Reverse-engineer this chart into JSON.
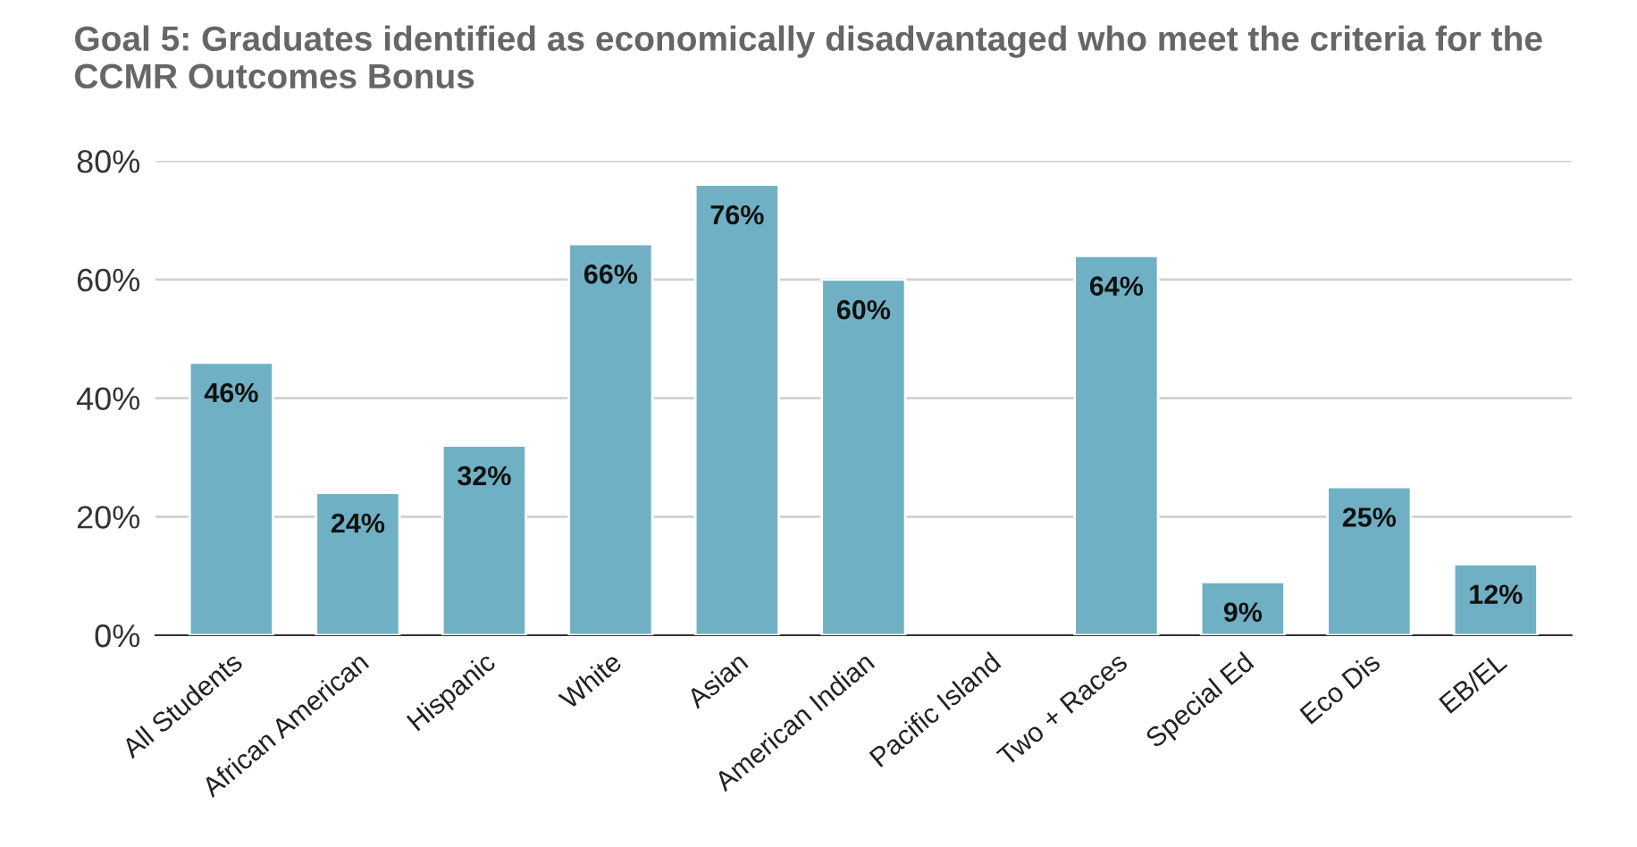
{
  "chart_data": {
    "type": "bar",
    "title": "Goal 5: Graduates identified as economically disadvantaged who meet the criteria for the CCMR Outcomes Bonus",
    "categories": [
      "All Students",
      "African American",
      "Hispanic",
      "White",
      "Asian",
      "American Indian",
      "Pacific Island",
      "Two + Races",
      "Special Ed",
      "Eco Dis",
      "EB/EL"
    ],
    "values": [
      46,
      24,
      32,
      66,
      76,
      60,
      null,
      64,
      9,
      25,
      12
    ],
    "value_labels": [
      "46%",
      "24%",
      "32%",
      "66%",
      "76%",
      "60%",
      null,
      "64%",
      "9%",
      "25%",
      "12%"
    ],
    "color": "#70b0c4",
    "ylim": [
      0,
      80
    ],
    "yticks": [
      {
        "value": 0,
        "label": "0%"
      },
      {
        "value": 20,
        "label": "20%"
      },
      {
        "value": 40,
        "label": "40%"
      },
      {
        "value": 60,
        "label": "60%"
      },
      {
        "value": 80,
        "label": "80%"
      }
    ],
    "grid": "y"
  }
}
